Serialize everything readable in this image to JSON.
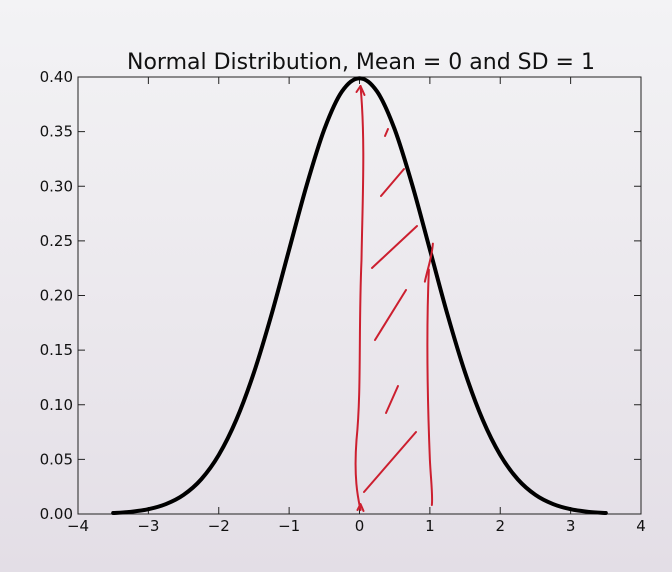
{
  "chart_data": {
    "type": "line",
    "title": "Normal Distribution, Mean = 0 and SD = 1",
    "xlabel": "",
    "ylabel": "",
    "xlim": [
      -4,
      4
    ],
    "ylim": [
      0,
      0.4
    ],
    "x_ticks": [
      -4,
      -3,
      -2,
      -1,
      0,
      1,
      2,
      3,
      4
    ],
    "x_tick_labels": [
      "−4",
      "−3",
      "−2",
      "−1",
      "0",
      "1",
      "2",
      "3",
      "4"
    ],
    "y_ticks": [
      0.0,
      0.05,
      0.1,
      0.15,
      0.2,
      0.25,
      0.3,
      0.35,
      0.4
    ],
    "y_tick_labels": [
      "0.00",
      "0.05",
      "0.10",
      "0.15",
      "0.20",
      "0.25",
      "0.30",
      "0.35",
      "0.40"
    ],
    "grid": false,
    "series": [
      {
        "color": "#000000",
        "x": [
          -3.5,
          -3.25,
          -3.0,
          -2.75,
          -2.5,
          -2.25,
          -2.0,
          -1.75,
          -1.5,
          -1.25,
          -1.0,
          -0.75,
          -0.5,
          -0.25,
          0.0,
          0.25,
          0.5,
          0.75,
          1.0,
          1.25,
          1.5,
          1.75,
          2.0,
          2.25,
          2.5,
          2.75,
          3.0,
          3.25,
          3.5
        ],
        "y": [
          0.0009,
          0.002,
          0.0044,
          0.0091,
          0.0175,
          0.0317,
          0.054,
          0.0863,
          0.1295,
          0.1826,
          0.242,
          0.3011,
          0.3521,
          0.3867,
          0.3989,
          0.3867,
          0.3521,
          0.3011,
          0.242,
          0.1826,
          0.1295,
          0.0863,
          0.054,
          0.0317,
          0.0175,
          0.0091,
          0.0044,
          0.002,
          0.0009
        ]
      }
    ],
    "annotation": {
      "kind": "hand-drawn shaded region",
      "color": "#cc1f2f",
      "x_from": 0,
      "x_to": 1
    }
  }
}
